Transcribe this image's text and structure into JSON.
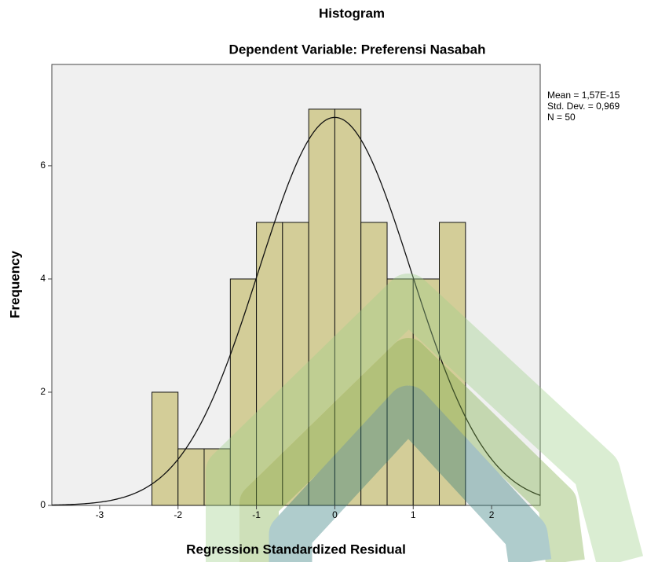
{
  "chart_data": {
    "type": "histogram",
    "title": "Histogram",
    "subtitle": "Dependent Variable: Preferensi Nasabah",
    "x_label": "Regression Standardized Residual",
    "y_label": "Frequency",
    "bins": [
      -2.333,
      -2,
      -1.667,
      -1.333,
      -1,
      -0.667,
      -0.333,
      0,
      0.333,
      0.667,
      1,
      1.333,
      1.667
    ],
    "counts": [
      2,
      1,
      1,
      4,
      5,
      5,
      7,
      7,
      5,
      4,
      4,
      5
    ],
    "color": "#d3cd98",
    "xlim": [
      -3.61,
      2.62
    ],
    "ylim": [
      0,
      7.79
    ],
    "xticks": [
      -3,
      -2,
      -1,
      0,
      1,
      2
    ],
    "yticks": [
      0,
      2,
      4,
      6
    ],
    "normal_curve": true,
    "stats": {
      "mean": {
        "value": 1.57e-15,
        "label": "Mean = 1,57E-15"
      },
      "sd": {
        "value": 0.969,
        "label": "Std. Dev. = 0,969"
      },
      "n": {
        "value": 50,
        "label": "N = 50"
      }
    }
  }
}
